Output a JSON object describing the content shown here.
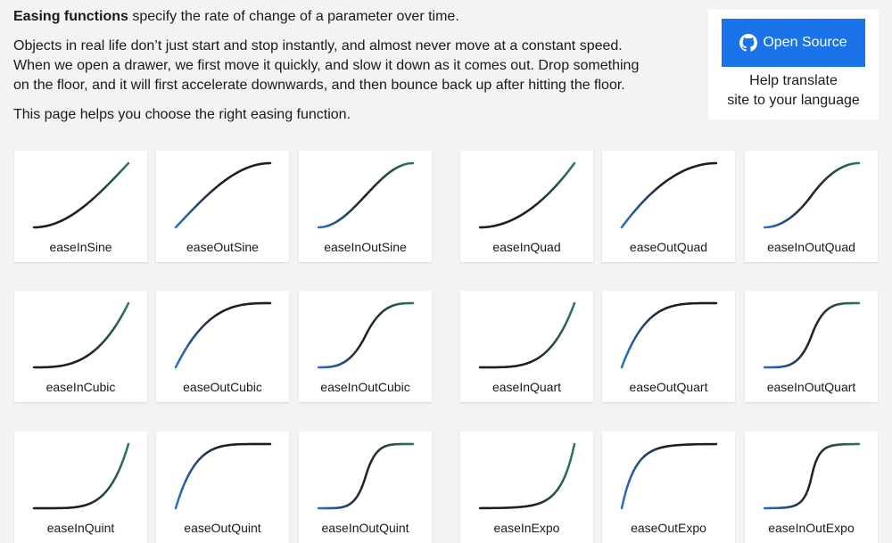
{
  "intro": {
    "lead_bold": "Easing functions",
    "lead_rest": " specify the rate of change of a parameter over time.",
    "para_lines": [
      "Objects in real life don’t just start and stop instantly, and almost never move at a constant speed.",
      "When we open a drawer, we first move it quickly, and slow it down as it comes out. Drop something",
      "on the floor, and it will first accelerate downwards, and then bounce back up after hitting the floor."
    ],
    "note": "This page helps you choose the right easing function."
  },
  "open_source": {
    "button_label": "Open Source",
    "help_lines": [
      "Help translate",
      "site to your language"
    ]
  },
  "colors": {
    "accent": "#1a73e8",
    "line_in": "#2a73c8",
    "line_out": "#2a7a5c",
    "line_mid": "#1f1f1f"
  },
  "easings": [
    {
      "name": "easeInSine",
      "family": "sine",
      "kind": "in"
    },
    {
      "name": "easeOutSine",
      "family": "sine",
      "kind": "out"
    },
    {
      "name": "easeInOutSine",
      "family": "sine",
      "kind": "inout"
    },
    {
      "name": "easeInQuad",
      "family": "quad",
      "kind": "in"
    },
    {
      "name": "easeOutQuad",
      "family": "quad",
      "kind": "out"
    },
    {
      "name": "easeInOutQuad",
      "family": "quad",
      "kind": "inout"
    },
    {
      "name": "easeInCubic",
      "family": "cubic",
      "kind": "in"
    },
    {
      "name": "easeOutCubic",
      "family": "cubic",
      "kind": "out"
    },
    {
      "name": "easeInOutCubic",
      "family": "cubic",
      "kind": "inout"
    },
    {
      "name": "easeInQuart",
      "family": "quart",
      "kind": "in"
    },
    {
      "name": "easeOutQuart",
      "family": "quart",
      "kind": "out"
    },
    {
      "name": "easeInOutQuart",
      "family": "quart",
      "kind": "inout"
    },
    {
      "name": "easeInQuint",
      "family": "quint",
      "kind": "in"
    },
    {
      "name": "easeOutQuint",
      "family": "quint",
      "kind": "out"
    },
    {
      "name": "easeInOutQuint",
      "family": "quint",
      "kind": "inout"
    },
    {
      "name": "easeInExpo",
      "family": "expo",
      "kind": "in"
    },
    {
      "name": "easeOutExpo",
      "family": "expo",
      "kind": "out"
    },
    {
      "name": "easeInOutExpo",
      "family": "expo",
      "kind": "inout"
    }
  ]
}
